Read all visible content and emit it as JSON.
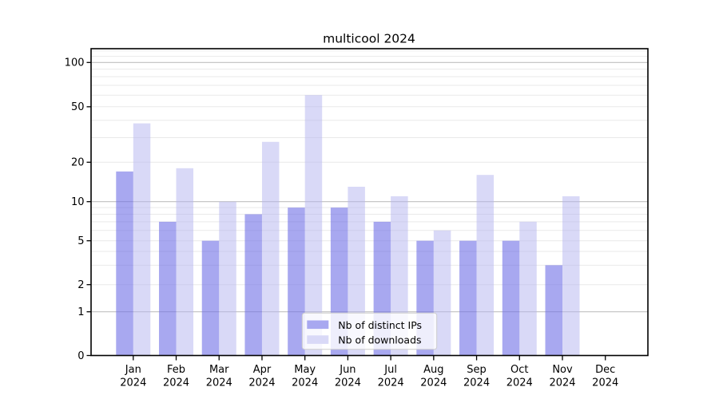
{
  "title": "multicool 2024",
  "chart_data": {
    "type": "bar",
    "title": "multicool 2024",
    "categories": [
      "Jan",
      "Feb",
      "Mar",
      "Apr",
      "May",
      "Jun",
      "Jul",
      "Aug",
      "Sep",
      "Oct",
      "Nov",
      "Dec"
    ],
    "category_year": "2024",
    "series": [
      {
        "name": "Nb of distinct IPs",
        "legend_color": "#a8a8f0",
        "bar_fill": "rgba(110,110,230,0.6)",
        "values": [
          17,
          7,
          5,
          8,
          9,
          9,
          7,
          5,
          5,
          5,
          3,
          0
        ]
      },
      {
        "name": "Nb of downloads",
        "legend_color": "#d9d9f7",
        "bar_fill": "rgba(179,179,239,0.5)",
        "values": [
          38,
          18,
          10,
          28,
          60,
          13,
          11,
          6,
          16,
          7,
          11,
          0
        ]
      }
    ],
    "y_axis": {
      "scale": "log-like with zero baseline",
      "tick_values": [
        100,
        50,
        20,
        10,
        5,
        2,
        1,
        0
      ],
      "tick_labels": [
        "100",
        "50",
        "20",
        "10",
        "5",
        "2",
        "1",
        "0"
      ],
      "major_gridlines": [
        1,
        10,
        100
      ],
      "minor_gridlines": [
        2,
        3,
        4,
        5,
        6,
        7,
        8,
        9,
        20,
        30,
        40,
        50,
        60,
        70,
        80,
        90,
        110,
        120
      ],
      "ylim": [
        0,
        125
      ]
    },
    "grid": "on",
    "legend": {
      "position": "lower center",
      "entries": [
        "Nb of distinct IPs",
        "Nb of downloads"
      ]
    },
    "colors": {
      "minor_grid": "#e9e9e9",
      "major_grid": "#c0c0c0",
      "spine": "#000000",
      "legend_bg": "rgba(255,255,255,0.8)",
      "legend_border": "#cccccc",
      "text": "#000000"
    }
  }
}
